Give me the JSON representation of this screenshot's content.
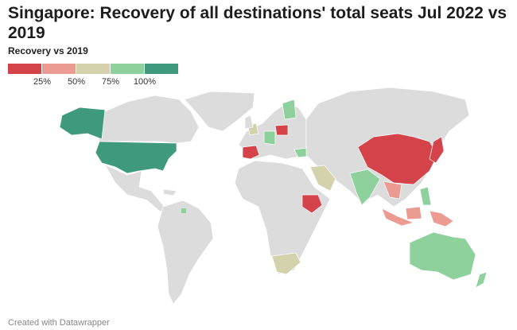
{
  "header": {
    "title": "Singapore: Recovery of all destinations' total seats Jul 2022 vs 2019"
  },
  "legend": {
    "title": "Recovery vs 2019",
    "labels": [
      "25%",
      "50%",
      "75%",
      "100%"
    ],
    "colors": [
      "#d5434a",
      "#ec9b92",
      "#d4d2ad",
      "#8ed19d",
      "#3f997d"
    ]
  },
  "footer": {
    "text": "Created with Datawrapper"
  }
}
